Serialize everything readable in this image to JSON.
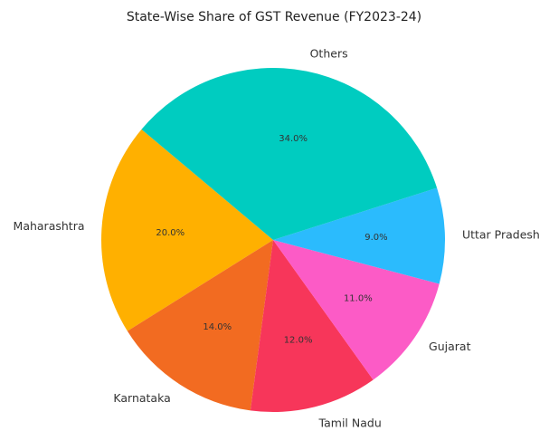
{
  "chart_data": {
    "type": "pie",
    "title": "State-Wise Share of GST Revenue (FY2023-24)",
    "categories": [
      "Maharashtra",
      "Karnataka",
      "Tamil Nadu",
      "Gujarat",
      "Uttar Pradesh",
      "Others"
    ],
    "values": [
      20,
      14,
      12,
      11,
      9,
      34
    ],
    "value_labels": [
      "20.0%",
      "14.0%",
      "12.0%",
      "11.0%",
      "9.0%",
      "34.0%"
    ],
    "colors": [
      "#ffb000",
      "#f26b21",
      "#f7365a",
      "#fc5bc6",
      "#2bbbfd",
      "#00ccc0"
    ]
  }
}
